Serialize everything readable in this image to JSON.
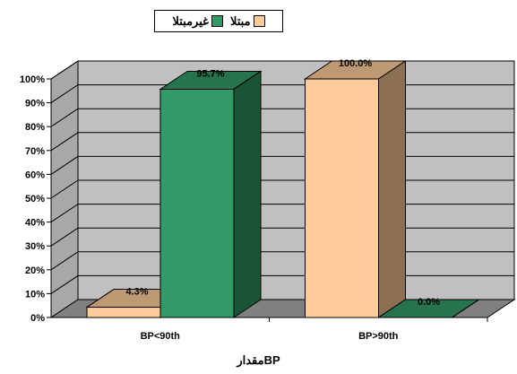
{
  "chart_data": {
    "type": "bar",
    "categories": [
      "BP<90th",
      "BP>90th"
    ],
    "series": [
      {
        "name": "مبتلا",
        "values": [
          4.3,
          100.0
        ],
        "labels": [
          "4.3%",
          "100.0%"
        ],
        "color": "#FFCC99"
      },
      {
        "name": "غيرمبتلا",
        "values": [
          95.7,
          0.0
        ],
        "labels": [
          "95.7%",
          "0.0%"
        ],
        "color": "#339966"
      }
    ],
    "title": "",
    "xlabel": "مقدارBP",
    "ylabel": "",
    "ylim": [
      0,
      100
    ],
    "yticks": [
      "0%",
      "10%",
      "20%",
      "30%",
      "40%",
      "50%",
      "60%",
      "70%",
      "80%",
      "90%",
      "100%"
    ],
    "grid": true,
    "legend": "top",
    "style": "3d"
  },
  "colors": {
    "wall": "#C0C0C0",
    "floor": "#808080",
    "grid": "#000000"
  }
}
